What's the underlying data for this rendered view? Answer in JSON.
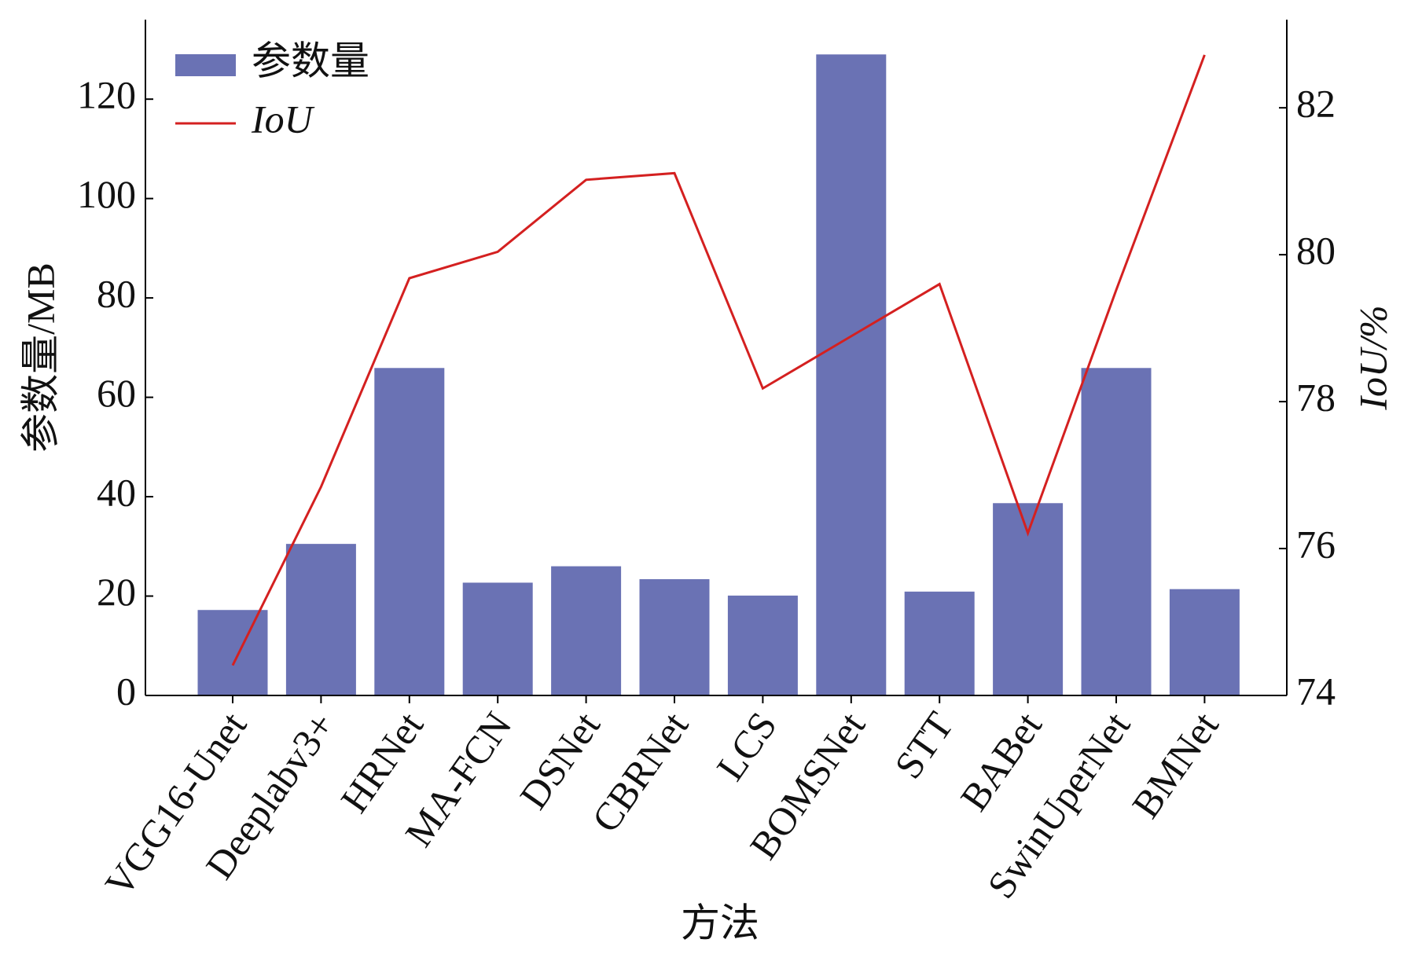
{
  "chart_data": {
    "type": "combo",
    "categories": [
      "VGG16-Unet",
      "Deeplabv3+",
      "HRNet",
      "MA-FCN",
      "DSNet",
      "CBRNet",
      "LCS",
      "BOMSNet",
      "STT",
      "BABet",
      "SwinUperNet",
      "BMNet"
    ],
    "series": [
      {
        "name": "参数量",
        "type": "bar",
        "axis": "y",
        "color": "#6a72b4",
        "values": [
          17.2,
          30.5,
          65.9,
          22.7,
          26,
          23.4,
          20.1,
          129,
          20.9,
          38.7,
          65.9,
          21.4
        ]
      },
      {
        "name": "IoU",
        "type": "line",
        "axis": "y2",
        "color": "#d42020",
        "values": [
          74.41,
          76.84,
          79.68,
          80.04,
          81.02,
          81.11,
          78.18,
          78.89,
          79.6,
          76.21,
          79.52,
          82.72
        ]
      }
    ],
    "xlabel": "方法",
    "ylabel": "参数量/MB",
    "y2label": "IoU/%",
    "ylim": [
      0,
      136
    ],
    "yticks": [
      0,
      20,
      40,
      60,
      80,
      100,
      120
    ],
    "y2lim": [
      74,
      83.2
    ],
    "y2ticks": [
      74,
      76,
      78,
      80,
      82
    ],
    "legend": "upper-left"
  }
}
